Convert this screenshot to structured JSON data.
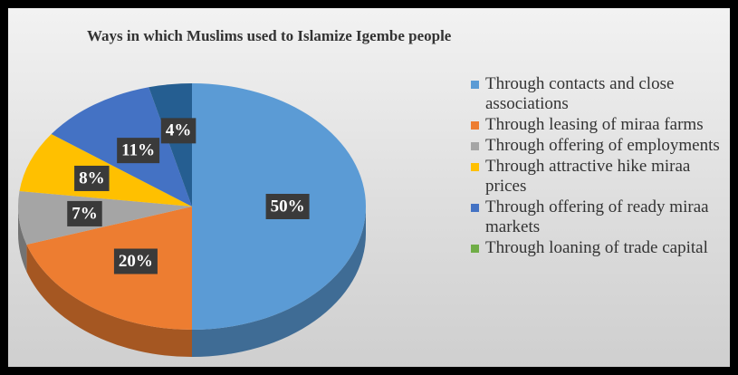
{
  "chart_data": {
    "type": "pie",
    "title": "Ways in which Muslims used to Islamize Igembe people",
    "categories": [
      "Through contacts and close associations",
      "Through leasing of miraa farms",
      "Through offering of employments",
      "Through attractive hike miraa prices",
      "Through offering of ready miraa markets",
      "Through loaning of trade capital",
      null
    ],
    "values": [
      50,
      20,
      7,
      8,
      11,
      0,
      4
    ],
    "value_labels": [
      "50%",
      "20%",
      "7%",
      "8%",
      "11%",
      null,
      "4%"
    ],
    "colors": [
      "#5b9bd5",
      "#ed7d31",
      "#a5a5a5",
      "#ffc000",
      "#4472c4",
      "#70ad47",
      "#255e91"
    ]
  }
}
